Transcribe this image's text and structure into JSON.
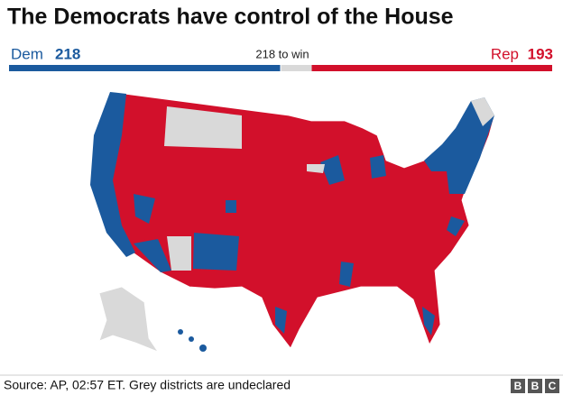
{
  "header": {
    "title": "The Democrats have control of the House"
  },
  "seats": {
    "dem": {
      "label": "Dem",
      "value": 218,
      "color": "#1b5a9e"
    },
    "rep": {
      "label": "Rep",
      "value": 193,
      "color": "#d2102b"
    },
    "win": {
      "value": 218,
      "label": "218 to win"
    }
  },
  "footer": {
    "source": "Source: AP, 02:57 ET. Grey districts are undeclared",
    "logo": [
      "B",
      "B",
      "C"
    ]
  }
}
